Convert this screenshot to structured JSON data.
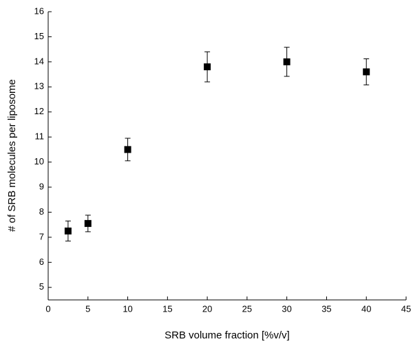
{
  "chart_data": {
    "type": "scatter",
    "x_label": "SRB volume fraction [%v/v]",
    "y_label": "# of SRB molecules per liposome",
    "series": [
      {
        "color": "#000000",
        "x": [
          2.5,
          5,
          10,
          20,
          30,
          40
        ],
        "values": [
          7.25,
          7.55,
          10.5,
          13.8,
          14.0,
          13.6
        ],
        "errors": [
          0.4,
          0.33,
          0.45,
          0.6,
          0.58,
          0.52
        ]
      }
    ],
    "xlim": [
      0,
      45
    ],
    "xticks": [
      0,
      5,
      10,
      15,
      20,
      25,
      30,
      35,
      40,
      45
    ],
    "ylim": [
      4.5,
      16
    ],
    "yticks": [
      5,
      6,
      7,
      8,
      9,
      10,
      11,
      12,
      13,
      14,
      15,
      16
    ],
    "grid": false
  }
}
